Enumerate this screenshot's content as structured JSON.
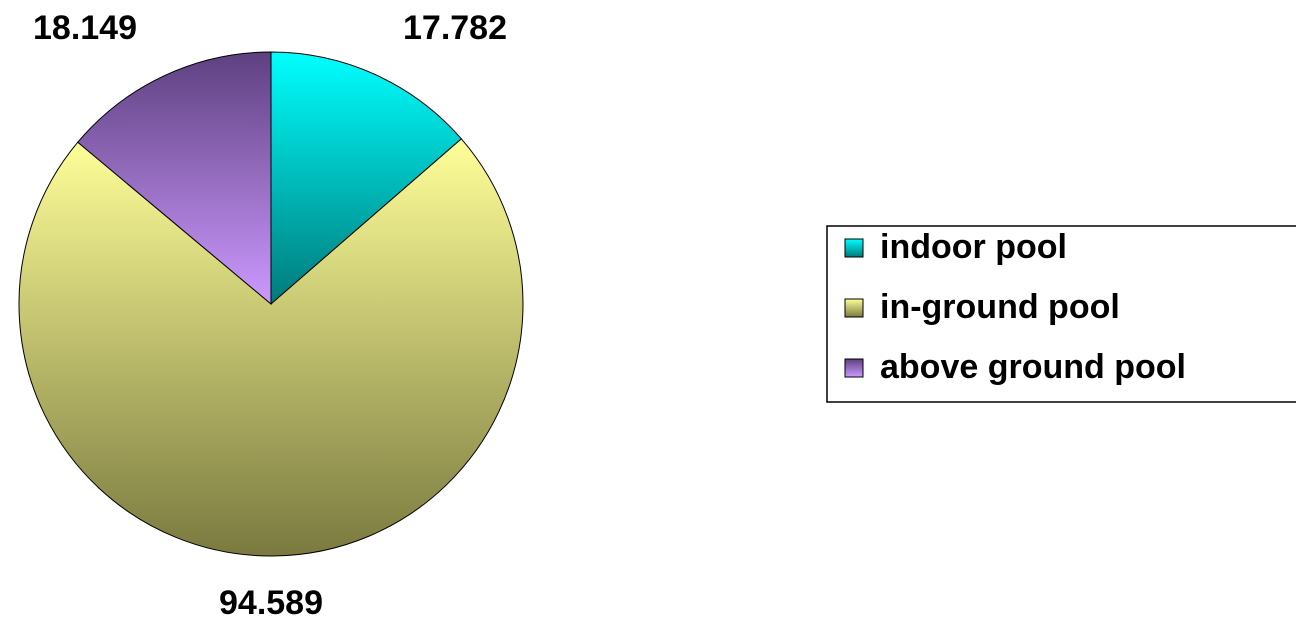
{
  "chart_data": {
    "type": "pie",
    "categories": [
      "indoor pool",
      "in-ground pool",
      "above ground pool"
    ],
    "values": [
      17.782,
      94.589,
      18.149
    ],
    "colors": [
      [
        "#00ffff",
        "#007a7a"
      ],
      [
        "#ffff99",
        "#7a7a40"
      ],
      [
        "#5e4080",
        "#cc99ff"
      ]
    ],
    "legend": "right"
  }
}
